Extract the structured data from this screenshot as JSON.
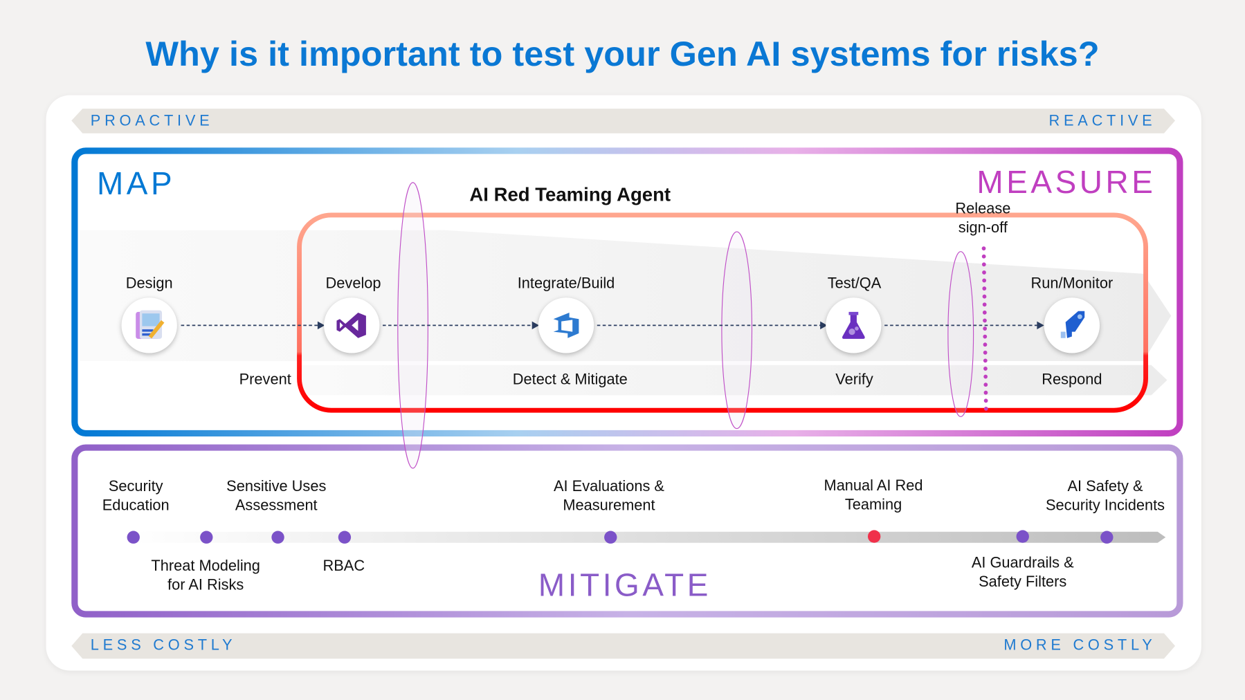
{
  "title": "Why is it important to test your Gen AI systems for risks?",
  "top_banner": {
    "left": "PROACTIVE",
    "right": "REACTIVE"
  },
  "bottom_banner": {
    "left": "LESS COSTLY",
    "right": "MORE COSTLY"
  },
  "sections": {
    "map": "MAP",
    "measure": "MEASURE",
    "mitigate": "MITIGATE"
  },
  "agent_label": "AI Red Teaming Agent",
  "release_label": [
    "Release",
    "sign-off"
  ],
  "stages": [
    {
      "label": "Design",
      "icon": "design-doc-icon"
    },
    {
      "label": "Develop",
      "icon": "visual-studio-icon"
    },
    {
      "label": "Integrate/Build",
      "icon": "azure-devops-icon"
    },
    {
      "label": "Test/QA",
      "icon": "flask-icon"
    },
    {
      "label": "Run/Monitor",
      "icon": "rocket-icon"
    }
  ],
  "phases": [
    "Prevent",
    "Detect & Mitigate",
    "Verify",
    "Respond"
  ],
  "mitigations_above": [
    [
      "Security",
      "Education"
    ],
    [
      "Sensitive Uses",
      "Assessment"
    ],
    [
      "AI Evaluations &",
      "Measurement"
    ],
    [
      "Manual AI Red",
      "Teaming"
    ],
    [
      "AI Safety &",
      "Security Incidents"
    ]
  ],
  "mitigations_below": [
    [
      "Threat Modeling",
      "for AI Risks"
    ],
    [
      "RBAC"
    ],
    [
      "AI Guardrails &",
      "Safety Filters"
    ]
  ],
  "colors": {
    "title": "#0a78d4",
    "map": "#0078d4",
    "measure": "#c03fc0",
    "mitigate": "#8a5cc8",
    "dot": "#7b52c8",
    "highlight_dot": "#f0304a",
    "agent_box": "#ff0000"
  }
}
